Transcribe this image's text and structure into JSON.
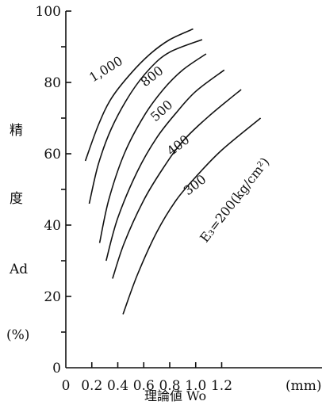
{
  "chart_data": {
    "type": "line",
    "xlim": [
      0,
      1.3
    ],
    "ylim": [
      0,
      100
    ],
    "x_ticks": [
      0,
      0.2,
      0.4,
      0.6,
      0.8,
      1.0,
      1.2
    ],
    "x_tick_labels": [
      "0",
      "0.2",
      "0.4",
      "0.6",
      "0.8",
      "1.0",
      "1.2"
    ],
    "x_unit": "(mm)",
    "y_ticks": [
      0,
      20,
      40,
      60,
      80,
      100
    ],
    "y_tick_labels": [
      "0",
      "20",
      "40",
      "60",
      "80",
      "100"
    ],
    "ylabel_chars": [
      "精",
      "度",
      "Ad"
    ],
    "ylabel_unit": "(%)",
    "xlabel": "理論値 Wo",
    "grid": false,
    "series": [
      {
        "name": "1,000",
        "points": [
          [
            0.15,
            58
          ],
          [
            0.25,
            68
          ],
          [
            0.35,
            75.5
          ],
          [
            0.5,
            82.5
          ],
          [
            0.65,
            88
          ],
          [
            0.8,
            92
          ],
          [
            0.98,
            95
          ]
        ]
      },
      {
        "name": "800",
        "points": [
          [
            0.18,
            46
          ],
          [
            0.25,
            57
          ],
          [
            0.35,
            67
          ],
          [
            0.5,
            77
          ],
          [
            0.65,
            84
          ],
          [
            0.8,
            88.5
          ],
          [
            1.05,
            92
          ]
        ]
      },
      {
        "name": "500",
        "points": [
          [
            0.26,
            35
          ],
          [
            0.33,
            47
          ],
          [
            0.45,
            60
          ],
          [
            0.6,
            70.5
          ],
          [
            0.75,
            78
          ],
          [
            0.9,
            83.5
          ],
          [
            1.08,
            88
          ]
        ]
      },
      {
        "name": "400",
        "points": [
          [
            0.31,
            30
          ],
          [
            0.4,
            42
          ],
          [
            0.55,
            55
          ],
          [
            0.7,
            64.5
          ],
          [
            0.85,
            71.5
          ],
          [
            1.0,
            77.5
          ],
          [
            1.22,
            83.5
          ]
        ]
      },
      {
        "name": "300",
        "points": [
          [
            0.36,
            25
          ],
          [
            0.45,
            35
          ],
          [
            0.6,
            47
          ],
          [
            0.75,
            56
          ],
          [
            0.9,
            63.5
          ],
          [
            1.1,
            70.5
          ],
          [
            1.35,
            78
          ]
        ]
      },
      {
        "name": "E3=200(kg/cm²)",
        "points": [
          [
            0.44,
            15
          ],
          [
            0.55,
            26
          ],
          [
            0.7,
            38
          ],
          [
            0.85,
            47
          ],
          [
            1.0,
            53.5
          ],
          [
            1.2,
            61
          ],
          [
            1.5,
            70
          ]
        ]
      }
    ],
    "labels": [
      "1,000",
      "800",
      "500",
      "400",
      "300",
      "E₃=200(kg/cm²)"
    ]
  }
}
